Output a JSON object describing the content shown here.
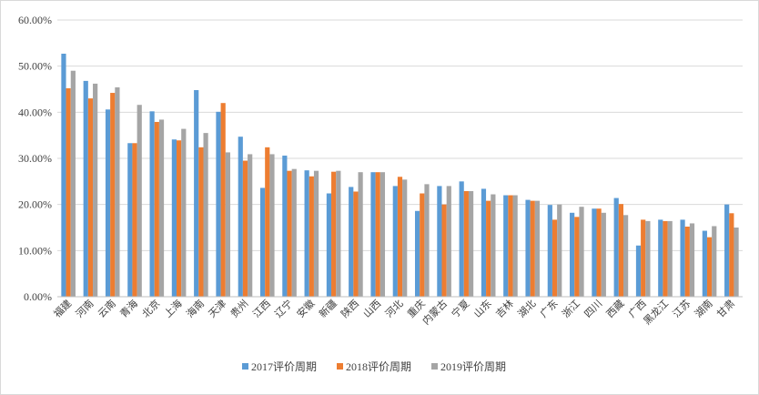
{
  "chart_data": {
    "type": "bar",
    "title": "",
    "xlabel": "",
    "ylabel": "",
    "ylim": [
      0,
      60
    ],
    "y_ticks": [
      "0.00%",
      "10.00%",
      "20.00%",
      "30.00%",
      "40.00%",
      "50.00%",
      "60.00%"
    ],
    "grid": true,
    "legend_position": "bottom",
    "categories": [
      "福建",
      "河南",
      "云南",
      "青海",
      "北京",
      "上海",
      "海南",
      "天津",
      "贵州",
      "江西",
      "辽宁",
      "安徽",
      "新疆",
      "陕西",
      "山西",
      "河北",
      "重庆",
      "内蒙古",
      "宁夏",
      "山东",
      "吉林",
      "湖北",
      "广东",
      "浙江",
      "四川",
      "西藏",
      "广西",
      "黑龙江",
      "江苏",
      "湖南",
      "甘肃"
    ],
    "series": [
      {
        "name": "2017评价周期",
        "color": "#5b9bd5",
        "values": [
          52.7,
          46.8,
          40.6,
          33.3,
          40.2,
          34.1,
          44.8,
          40.1,
          34.7,
          23.6,
          30.6,
          27.4,
          22.4,
          23.8,
          27.0,
          24.0,
          18.6,
          24.0,
          25.0,
          23.4,
          22.0,
          21.0,
          19.9,
          18.2,
          19.1,
          21.4,
          11.1,
          16.7,
          16.7,
          14.3,
          20.0
        ]
      },
      {
        "name": "2018评价周期",
        "color": "#ed7d31",
        "values": [
          45.2,
          43.0,
          44.2,
          33.3,
          37.9,
          33.9,
          32.4,
          42.0,
          29.5,
          32.4,
          27.3,
          26.1,
          27.1,
          22.8,
          27.0,
          26.0,
          22.4,
          20.0,
          22.9,
          20.8,
          22.0,
          20.8,
          16.7,
          17.3,
          19.1,
          20.1,
          16.7,
          16.4,
          15.2,
          12.9,
          18.1
        ]
      },
      {
        "name": "2019评价周期",
        "color": "#a5a5a5",
        "values": [
          49.0,
          46.2,
          45.4,
          41.6,
          38.4,
          36.4,
          35.5,
          31.3,
          30.9,
          30.9,
          27.7,
          27.3,
          27.3,
          27.0,
          27.0,
          25.4,
          24.4,
          24.0,
          22.9,
          22.2,
          22.0,
          20.8,
          20.0,
          19.5,
          18.2,
          17.7,
          16.4,
          16.4,
          15.9,
          15.3,
          15.0
        ]
      }
    ]
  }
}
